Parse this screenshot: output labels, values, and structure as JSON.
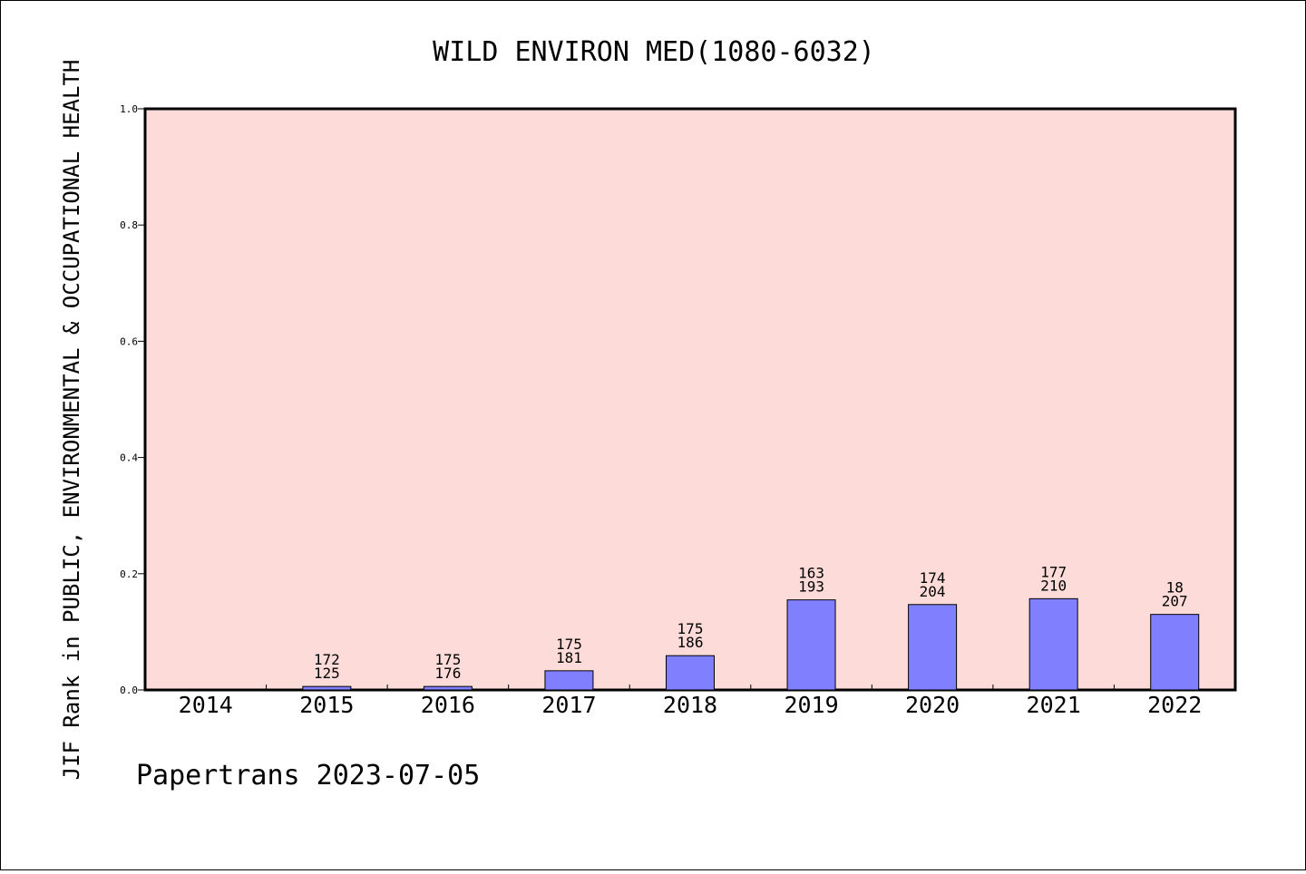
{
  "chart_data": {
    "type": "bar",
    "title": "WILD ENVIRON MED(1080-6032)",
    "xlabel": "",
    "ylabel": "JIF Rank in PUBLIC, ENVIRONMENTAL & OCCUPATIONAL HEALTH",
    "categories": [
      "2014",
      "2015",
      "2016",
      "2017",
      "2018",
      "2019",
      "2020",
      "2021",
      "2022"
    ],
    "values": [
      0,
      0.006,
      0.006,
      0.033,
      0.059,
      0.155,
      0.147,
      0.157,
      0.13
    ],
    "bar_labels": [
      {
        "top": "",
        "bottom": ""
      },
      {
        "top": "172",
        "bottom": "125"
      },
      {
        "top": "175",
        "bottom": "176"
      },
      {
        "top": "175",
        "bottom": "181"
      },
      {
        "top": "175",
        "bottom": "186"
      },
      {
        "top": "163",
        "bottom": "193"
      },
      {
        "top": "174",
        "bottom": "204"
      },
      {
        "top": "177",
        "bottom": "210"
      },
      {
        "top": "18",
        "bottom": "207"
      }
    ],
    "ylim": [
      0,
      1.0
    ],
    "yticks": [
      "0.0",
      "0.2",
      "0.4",
      "0.6",
      "0.8",
      "1.0"
    ],
    "grid": false,
    "colors": {
      "plot_bg": "#fddbd8",
      "bar": "#8080ff"
    }
  },
  "footer": "Papertrans 2023-07-05"
}
